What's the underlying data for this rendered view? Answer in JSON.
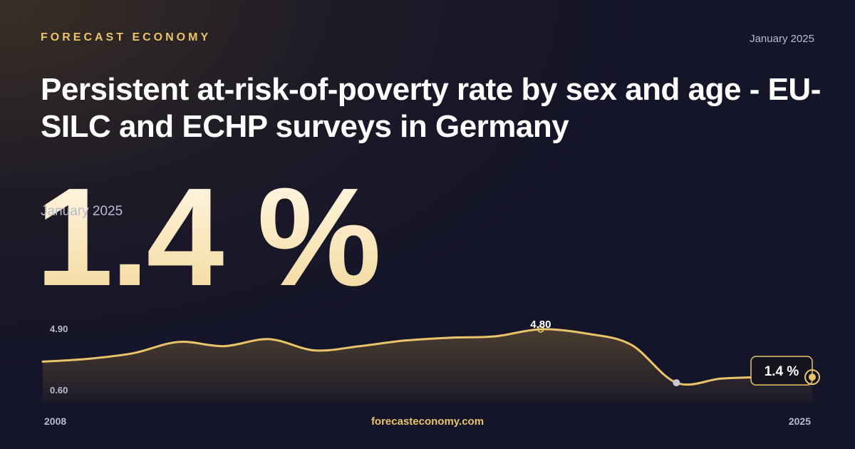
{
  "brand": "FORECAST ECONOMY",
  "date": "January 2025",
  "title": "Persistent at-risk-of-poverty rate by sex and age - EU-SILC and ECHP surveys in Germany",
  "headline": {
    "value": "1.4 %",
    "date": "January 2025"
  },
  "footer": "forecasteconomy.com",
  "colors": {
    "line": "#e9c46a",
    "accent": "#e9c46a",
    "text": "#ffffff"
  },
  "chart_data": {
    "type": "area",
    "x_start_label": "2008",
    "x_end_label": "2025",
    "ylim": [
      0.6,
      4.9
    ],
    "y_tick_labels": [
      "4.90",
      "0.60"
    ],
    "peak_label": "4.80",
    "last_label": "1.4 %",
    "x": [
      2008,
      2009,
      2010,
      2011,
      2012,
      2013,
      2014,
      2015,
      2016,
      2017,
      2018,
      2019,
      2020,
      2021,
      2022,
      2023,
      2024,
      2025
    ],
    "values": [
      2.5,
      2.7,
      3.1,
      3.9,
      3.6,
      4.1,
      3.3,
      3.6,
      4.0,
      4.2,
      4.3,
      4.8,
      4.5,
      3.7,
      1.0,
      1.3,
      1.4,
      1.4
    ],
    "peak_index": 11,
    "low_index": 14,
    "grid": false,
    "legend": "none"
  }
}
